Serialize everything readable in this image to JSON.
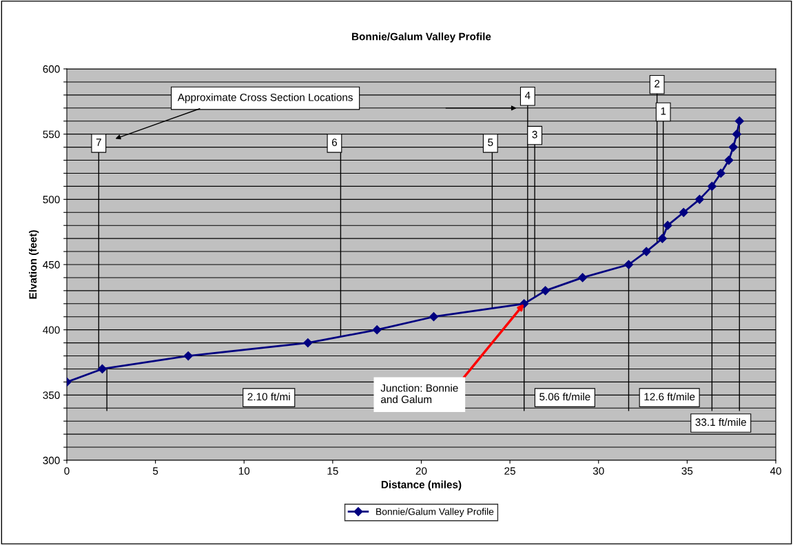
{
  "chart_data": {
    "type": "line",
    "title": "Bonnie/Galum Valley Profile",
    "xlabel": "Distance (miles)",
    "ylabel": "Elvation (feet)",
    "series": [
      {
        "name": "Bonnie/Galum Valley Profile",
        "color": "#000080",
        "x": [
          0,
          2.0,
          6.85,
          13.6,
          17.5,
          20.7,
          25.8,
          27.0,
          29.1,
          31.7,
          32.7,
          33.6,
          33.9,
          34.8,
          35.7,
          36.4,
          36.9,
          37.35,
          37.6,
          37.8,
          37.95
        ],
        "values": [
          360,
          370,
          380,
          390,
          400,
          410,
          420,
          430,
          440,
          450,
          460,
          470,
          480,
          490,
          500,
          510,
          520,
          530,
          540,
          550,
          560
        ]
      }
    ],
    "marker": "diamond",
    "line_style": "solid",
    "grid": "y",
    "legend": "bottom",
    "xlim": [
      0,
      40
    ],
    "xticks": [
      0,
      5,
      10,
      15,
      20,
      25,
      30,
      35,
      40
    ],
    "ylim": [
      300,
      600
    ],
    "yticks": [
      300,
      {
        "value": 310,
        "label": null
      },
      {
        "value": 320,
        "label": null
      },
      {
        "value": 330,
        "label": null
      },
      {
        "value": 340,
        "label": null
      },
      350,
      {
        "value": 360,
        "label": null
      },
      {
        "value": 370,
        "label": null
      },
      {
        "value": 380,
        "label": null
      },
      {
        "value": 390,
        "label": null
      },
      400,
      {
        "value": 410,
        "label": null
      },
      {
        "value": 420,
        "label": null
      },
      {
        "value": 430,
        "label": null
      },
      {
        "value": 440,
        "label": null
      },
      450,
      {
        "value": 460,
        "label": null
      },
      {
        "value": 470,
        "label": null
      },
      {
        "value": 480,
        "label": null
      },
      {
        "value": 490,
        "label": null
      },
      500,
      {
        "value": 510,
        "label": null
      },
      {
        "value": 520,
        "label": null
      },
      {
        "value": 530,
        "label": null
      },
      {
        "value": 540,
        "label": null
      },
      550,
      {
        "value": 560,
        "label": null
      },
      {
        "value": 570,
        "label": null
      },
      {
        "value": 580,
        "label": null
      },
      {
        "value": 590,
        "label": null
      },
      600
    ],
    "ref_lines": [
      {
        "axis": "x",
        "value": 1.8
      },
      {
        "axis": "x",
        "value": 15.45
      },
      {
        "axis": "x",
        "value": 24.0
      },
      {
        "axis": "x",
        "value": 26.0
      },
      {
        "axis": "x",
        "value": 26.4
      },
      {
        "axis": "x",
        "value": 33.3
      },
      {
        "axis": "x",
        "value": 33.65
      },
      {
        "axis": "x",
        "value": 2.26
      },
      {
        "axis": "x",
        "value": 25.8
      },
      {
        "axis": "x",
        "value": 31.7
      },
      {
        "axis": "x",
        "value": 36.4
      },
      {
        "axis": "x",
        "value": 37.95
      }
    ],
    "annotations": [
      "Approximate Cross Section Locations",
      "7",
      "6",
      "5",
      "4",
      "3",
      "2",
      "1",
      "2.10 ft/mi",
      "5.06 ft/mile",
      "12.6 ft/mile",
      "33.1 ft/mile",
      {
        "text": "Junction: Bonnie\nand Galum",
        "x": 25.8,
        "y": 420
      }
    ]
  }
}
